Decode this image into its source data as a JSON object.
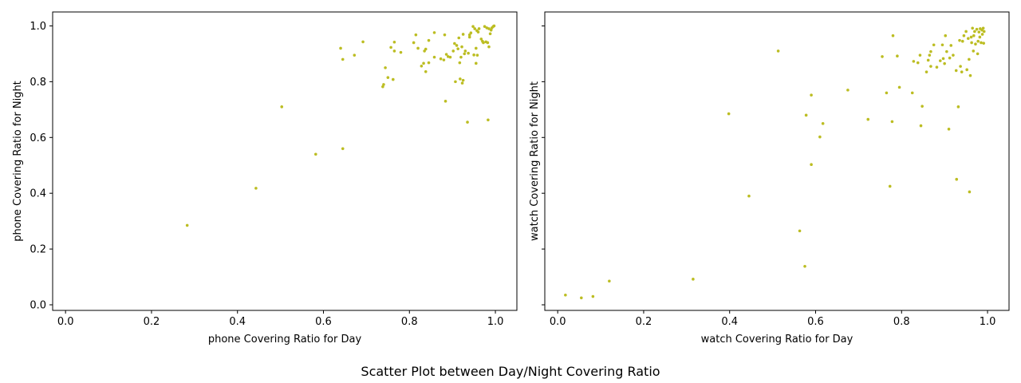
{
  "figure": {
    "title": "Scatter Plot between Day/Night Covering Ratio",
    "marker_color": "#bcbd22"
  },
  "chart_data": [
    {
      "type": "scatter",
      "title": "",
      "xlabel": "phone Covering Ratio for Day",
      "ylabel": "phone Covering Ratio for Night",
      "xlim": [
        -0.03,
        1.05
      ],
      "ylim": [
        -0.02,
        1.05
      ],
      "xticks": [
        "0.0",
        "0.2",
        "0.4",
        "0.6",
        "0.8",
        "1.0"
      ],
      "yticks": [
        "0.0",
        "0.2",
        "0.4",
        "0.6",
        "0.8",
        "1.0"
      ],
      "points": [
        [
          0.283,
          0.285
        ],
        [
          0.443,
          0.418
        ],
        [
          0.503,
          0.71
        ],
        [
          0.582,
          0.54
        ],
        [
          0.645,
          0.56
        ],
        [
          0.64,
          0.92
        ],
        [
          0.645,
          0.88
        ],
        [
          0.672,
          0.895
        ],
        [
          0.692,
          0.943
        ],
        [
          0.738,
          0.782
        ],
        [
          0.74,
          0.79
        ],
        [
          0.744,
          0.85
        ],
        [
          0.75,
          0.815
        ],
        [
          0.757,
          0.923
        ],
        [
          0.762,
          0.808
        ],
        [
          0.765,
          0.942
        ],
        [
          0.765,
          0.91
        ],
        [
          0.78,
          0.905
        ],
        [
          0.81,
          0.94
        ],
        [
          0.815,
          0.968
        ],
        [
          0.82,
          0.92
        ],
        [
          0.828,
          0.856
        ],
        [
          0.833,
          0.866
        ],
        [
          0.835,
          0.91
        ],
        [
          0.838,
          0.917
        ],
        [
          0.838,
          0.836
        ],
        [
          0.845,
          0.948
        ],
        [
          0.845,
          0.868
        ],
        [
          0.858,
          0.976
        ],
        [
          0.858,
          0.888
        ],
        [
          0.873,
          0.882
        ],
        [
          0.88,
          0.878
        ],
        [
          0.882,
          0.968
        ],
        [
          0.884,
          0.73
        ],
        [
          0.886,
          0.898
        ],
        [
          0.89,
          0.89
        ],
        [
          0.895,
          0.888
        ],
        [
          0.902,
          0.91
        ],
        [
          0.905,
          0.937
        ],
        [
          0.907,
          0.8
        ],
        [
          0.91,
          0.93
        ],
        [
          0.913,
          0.918
        ],
        [
          0.915,
          0.957
        ],
        [
          0.917,
          0.868
        ],
        [
          0.918,
          0.81
        ],
        [
          0.92,
          0.888
        ],
        [
          0.922,
          0.925
        ],
        [
          0.923,
          0.795
        ],
        [
          0.925,
          0.97
        ],
        [
          0.925,
          0.805
        ],
        [
          0.928,
          0.9
        ],
        [
          0.93,
          0.91
        ],
        [
          0.935,
          0.655
        ],
        [
          0.937,
          0.902
        ],
        [
          0.94,
          0.968
        ],
        [
          0.94,
          0.96
        ],
        [
          0.943,
          0.975
        ],
        [
          0.948,
          0.998
        ],
        [
          0.95,
          0.896
        ],
        [
          0.952,
          0.99
        ],
        [
          0.955,
          0.866
        ],
        [
          0.955,
          0.92
        ],
        [
          0.957,
          0.983
        ],
        [
          0.958,
          0.895
        ],
        [
          0.96,
          0.978
        ],
        [
          0.962,
          0.99
        ],
        [
          0.967,
          0.953
        ],
        [
          0.97,
          0.945
        ],
        [
          0.972,
          0.94
        ],
        [
          0.975,
          0.998
        ],
        [
          0.978,
          0.943
        ],
        [
          0.98,
          0.993
        ],
        [
          0.982,
          0.94
        ],
        [
          0.983,
          0.663
        ],
        [
          0.985,
          0.925
        ],
        [
          0.985,
          0.99
        ],
        [
          0.988,
          0.972
        ],
        [
          0.99,
          0.985
        ],
        [
          0.992,
          0.993
        ],
        [
          0.995,
          0.998
        ],
        [
          0.997,
          1.0
        ]
      ]
    },
    {
      "type": "scatter",
      "title": "",
      "xlabel": "watch Covering Ratio for Day",
      "ylabel": "watch Covering Ratio for Night",
      "xlim": [
        -0.03,
        1.05
      ],
      "ylim": [
        -0.02,
        1.05
      ],
      "xticks": [
        "0.0",
        "0.2",
        "0.4",
        "0.6",
        "0.8",
        "1.0"
      ],
      "yticks": [],
      "points": [
        [
          0.018,
          0.035
        ],
        [
          0.055,
          0.025
        ],
        [
          0.082,
          0.03
        ],
        [
          0.12,
          0.085
        ],
        [
          0.315,
          0.092
        ],
        [
          0.398,
          0.685
        ],
        [
          0.445,
          0.39
        ],
        [
          0.513,
          0.91
        ],
        [
          0.563,
          0.265
        ],
        [
          0.575,
          0.138
        ],
        [
          0.578,
          0.68
        ],
        [
          0.59,
          0.503
        ],
        [
          0.59,
          0.752
        ],
        [
          0.61,
          0.602
        ],
        [
          0.617,
          0.65
        ],
        [
          0.675,
          0.77
        ],
        [
          0.722,
          0.665
        ],
        [
          0.755,
          0.89
        ],
        [
          0.765,
          0.76
        ],
        [
          0.773,
          0.425
        ],
        [
          0.778,
          0.657
        ],
        [
          0.78,
          0.965
        ],
        [
          0.79,
          0.892
        ],
        [
          0.795,
          0.78
        ],
        [
          0.825,
          0.76
        ],
        [
          0.828,
          0.873
        ],
        [
          0.838,
          0.868
        ],
        [
          0.843,
          0.895
        ],
        [
          0.845,
          0.642
        ],
        [
          0.848,
          0.712
        ],
        [
          0.858,
          0.835
        ],
        [
          0.862,
          0.877
        ],
        [
          0.865,
          0.895
        ],
        [
          0.868,
          0.855
        ],
        [
          0.868,
          0.908
        ],
        [
          0.875,
          0.932
        ],
        [
          0.882,
          0.852
        ],
        [
          0.89,
          0.875
        ],
        [
          0.895,
          0.932
        ],
        [
          0.897,
          0.883
        ],
        [
          0.9,
          0.865
        ],
        [
          0.902,
          0.965
        ],
        [
          0.905,
          0.908
        ],
        [
          0.91,
          0.63
        ],
        [
          0.912,
          0.885
        ],
        [
          0.915,
          0.93
        ],
        [
          0.92,
          0.895
        ],
        [
          0.927,
          0.84
        ],
        [
          0.928,
          0.45
        ],
        [
          0.932,
          0.71
        ],
        [
          0.935,
          0.948
        ],
        [
          0.937,
          0.855
        ],
        [
          0.94,
          0.835
        ],
        [
          0.942,
          0.945
        ],
        [
          0.945,
          0.965
        ],
        [
          0.95,
          0.98
        ],
        [
          0.952,
          0.843
        ],
        [
          0.955,
          0.955
        ],
        [
          0.957,
          0.88
        ],
        [
          0.958,
          0.405
        ],
        [
          0.96,
          0.822
        ],
        [
          0.962,
          0.96
        ],
        [
          0.963,
          0.94
        ],
        [
          0.965,
          0.992
        ],
        [
          0.967,
          0.91
        ],
        [
          0.968,
          0.965
        ],
        [
          0.97,
          0.98
        ],
        [
          0.972,
          0.935
        ],
        [
          0.975,
          0.988
        ],
        [
          0.977,
          0.9
        ],
        [
          0.978,
          0.945
        ],
        [
          0.98,
          0.978
        ],
        [
          0.982,
          0.96
        ],
        [
          0.983,
          0.99
        ],
        [
          0.985,
          0.94
        ],
        [
          0.987,
          0.985
        ],
        [
          0.988,
          0.97
        ],
        [
          0.99,
          0.992
        ],
        [
          0.991,
          0.938
        ],
        [
          0.992,
          0.98
        ]
      ]
    }
  ]
}
